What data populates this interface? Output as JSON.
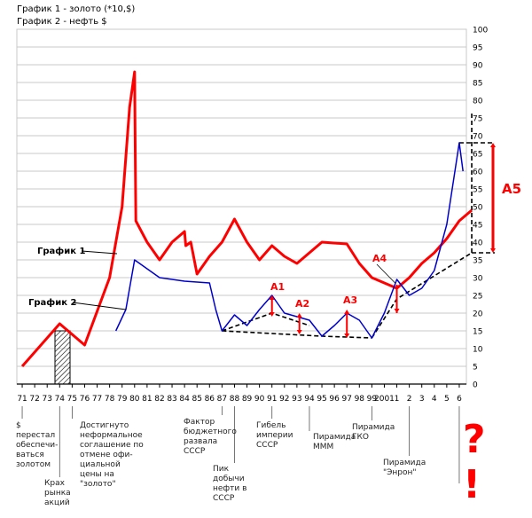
{
  "headers": [
    "График 1 - золото (*10,$)",
    "График 2 - нефть $"
  ],
  "chart_data": {
    "type": "line",
    "x_ticks": [
      "71",
      "72",
      "73",
      "74",
      "75",
      "76",
      "77",
      "78",
      "79",
      "80",
      "81",
      "82",
      "83",
      "84",
      "85",
      "86",
      "87",
      "88",
      "89",
      "90",
      "91",
      "92",
      "93",
      "94",
      "95",
      "96",
      "97",
      "98",
      "99",
      "2001",
      "1",
      "2",
      "3",
      "4",
      "5",
      "6"
    ],
    "y_ticks": [
      "0",
      "5",
      "10",
      "15",
      "20",
      "25",
      "30",
      "35",
      "40",
      "45",
      "50",
      "55",
      "60",
      "65",
      "70",
      "75",
      "80",
      "85",
      "90",
      "95",
      "100"
    ],
    "ylim": [
      0,
      100
    ],
    "colors": {
      "gold": "#ff0000",
      "oil": "#0000cc",
      "axis": "#000000",
      "grid": "#c8c8c8",
      "annotation": "#ff0000"
    },
    "series": [
      {
        "name": "График 1",
        "color": "#ff0000",
        "points": [
          [
            0,
            5
          ],
          [
            3,
            17
          ],
          [
            5,
            11
          ],
          [
            7,
            30
          ],
          [
            8,
            50
          ],
          [
            8.6,
            78
          ],
          [
            9,
            88
          ],
          [
            9.1,
            46
          ],
          [
            10,
            40
          ],
          [
            11,
            35
          ],
          [
            12,
            40
          ],
          [
            13,
            43
          ],
          [
            13.1,
            39
          ],
          [
            13.5,
            40
          ],
          [
            14,
            31
          ],
          [
            15,
            36
          ],
          [
            16,
            40
          ],
          [
            17,
            46.5
          ],
          [
            18,
            40
          ],
          [
            19,
            35
          ],
          [
            20,
            39
          ],
          [
            21,
            36
          ],
          [
            22,
            34
          ],
          [
            23,
            37
          ],
          [
            24,
            40
          ],
          [
            26,
            39.5
          ],
          [
            27,
            34
          ],
          [
            28,
            30
          ],
          [
            30,
            27
          ],
          [
            31,
            30
          ],
          [
            32,
            34
          ],
          [
            33,
            37
          ],
          [
            34,
            41
          ],
          [
            35,
            46
          ],
          [
            36,
            49
          ]
        ]
      },
      {
        "name": "График 2",
        "color": "#0000cc",
        "points": [
          [
            7.5,
            15
          ],
          [
            8.3,
            21
          ],
          [
            9,
            35
          ],
          [
            11,
            30
          ],
          [
            13,
            29
          ],
          [
            15,
            28.5
          ],
          [
            15.5,
            21
          ],
          [
            16,
            15
          ],
          [
            17,
            19.5
          ],
          [
            18,
            16.5
          ],
          [
            19,
            21
          ],
          [
            20,
            25
          ],
          [
            21,
            20
          ],
          [
            22,
            19
          ],
          [
            23,
            18
          ],
          [
            24,
            13.5
          ],
          [
            25,
            16.5
          ],
          [
            26,
            20
          ],
          [
            27,
            18
          ],
          [
            28,
            13
          ],
          [
            29,
            20
          ],
          [
            30,
            29.5
          ],
          [
            31,
            25
          ],
          [
            32,
            27
          ],
          [
            33,
            32
          ],
          [
            34,
            45
          ],
          [
            35,
            68
          ],
          [
            35.3,
            60
          ]
        ]
      }
    ],
    "labels": [
      "График 1",
      "График 2",
      "А1",
      "А2",
      "А3",
      "А4",
      "А5"
    ],
    "events": [
      {
        "label": "$ перестал обеспечи-ваться золотом",
        "x": 0
      },
      {
        "label": "Крах рынка акций",
        "x": 3
      },
      {
        "label": "Достигнуто неформальное соглашение по отмене офи-циальной цены на \"золото\"",
        "x": 4
      },
      {
        "label": "Фактор бюджетного развала СССР",
        "x": 16
      },
      {
        "label": "Пик добычи нефти в СССР",
        "x": 17
      },
      {
        "label": "Гибель империи СССР",
        "x": 20
      },
      {
        "label": "Пирамида МММ",
        "x": 23
      },
      {
        "label": "Пирамида ГКО",
        "x": 28
      },
      {
        "label": "Пирамида \"Энрон\"",
        "x": 31
      }
    ]
  },
  "question_marks": "? !"
}
